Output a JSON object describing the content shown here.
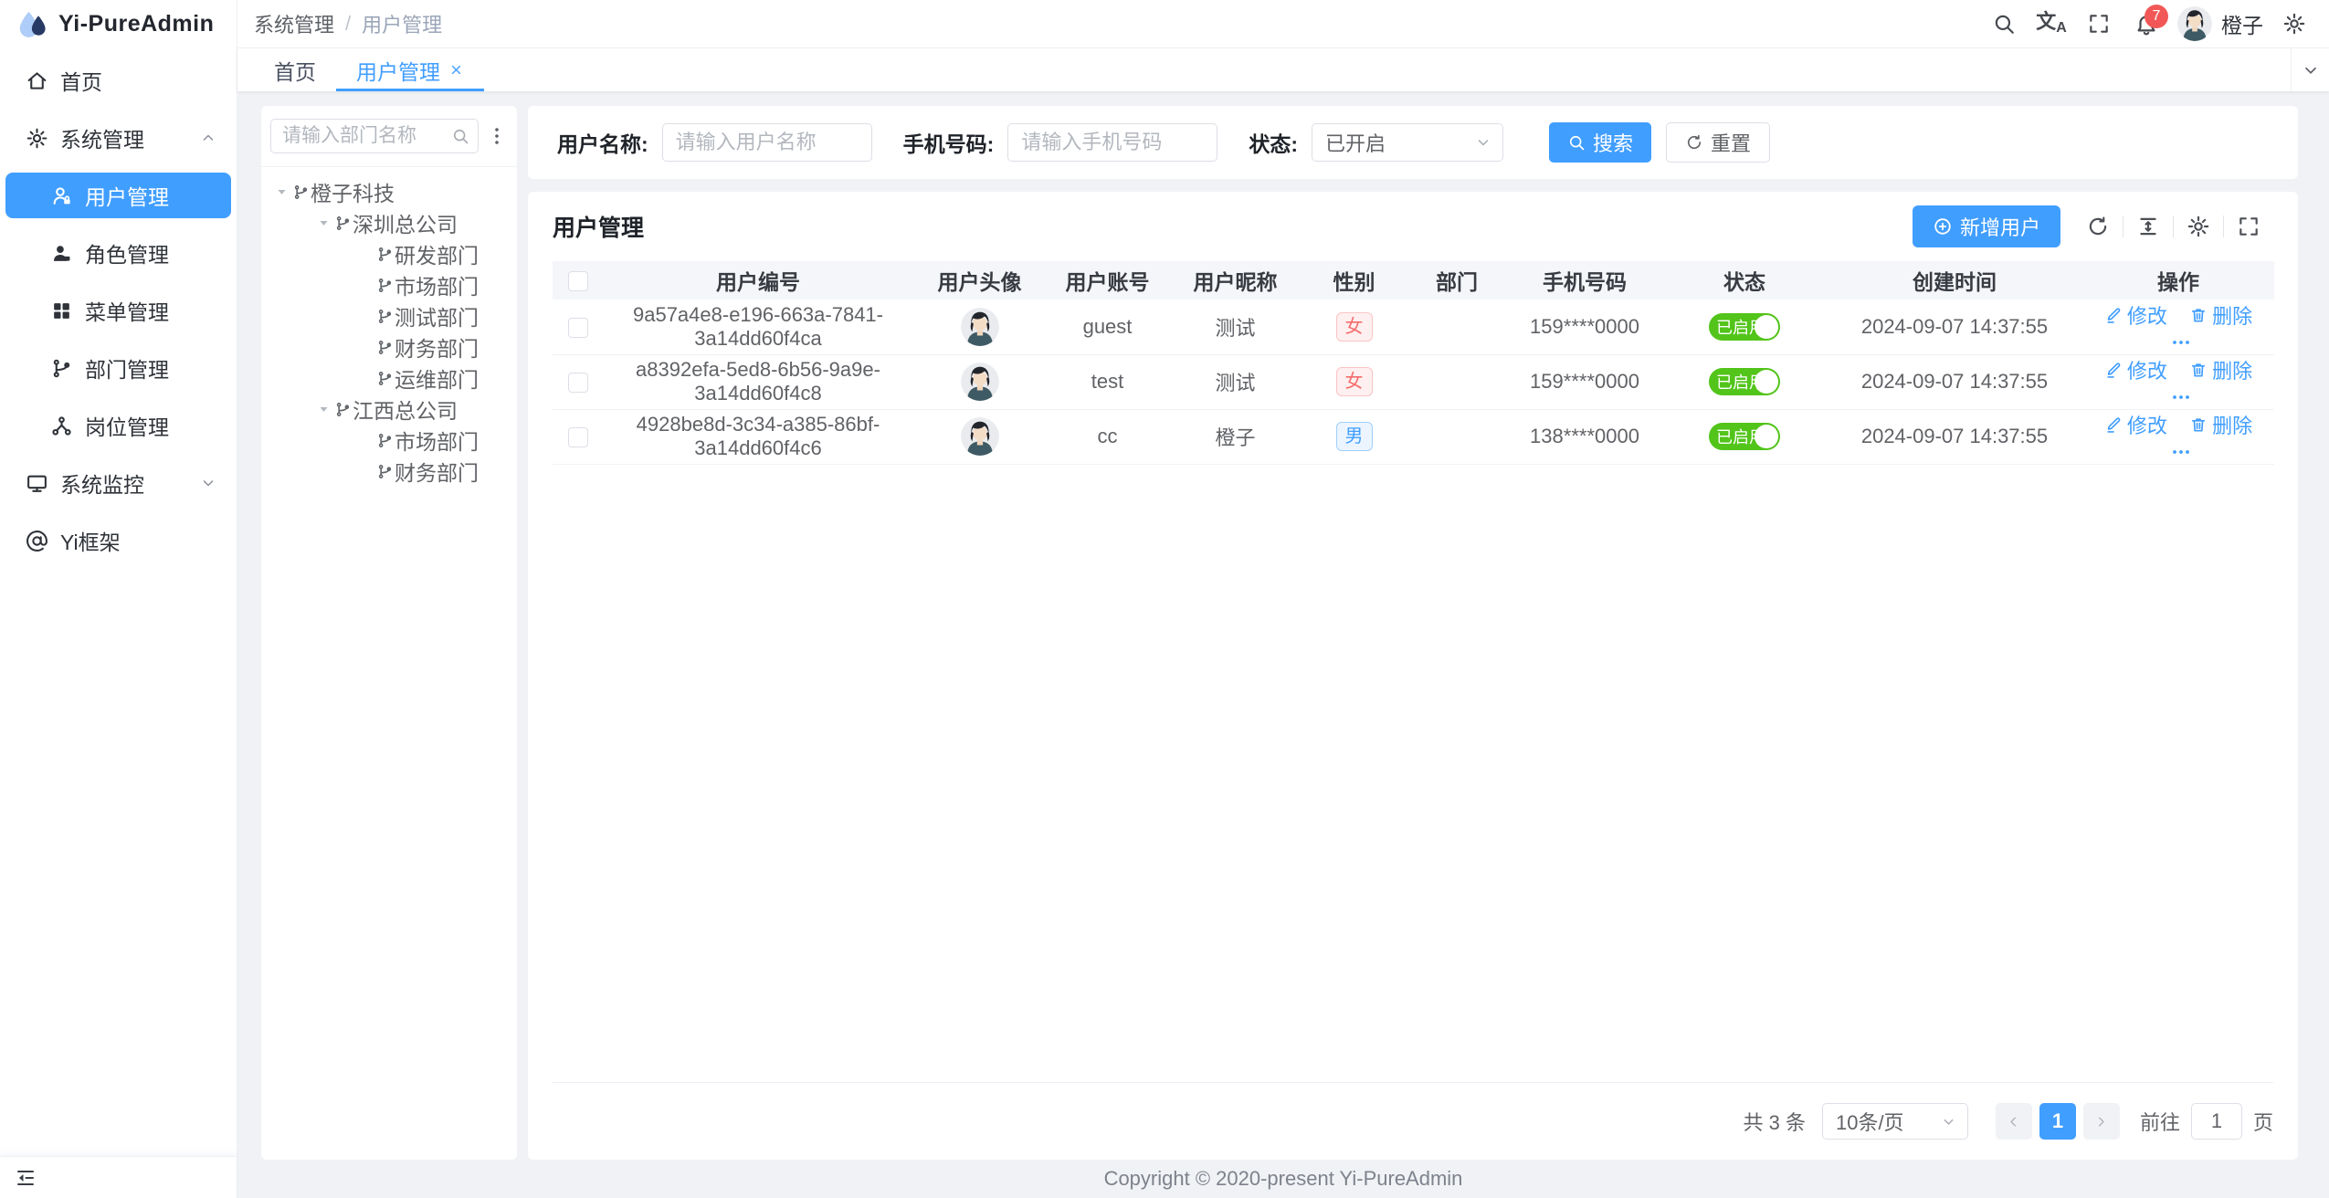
{
  "app": {
    "name": "Yi-PureAdmin"
  },
  "header": {
    "breadcrumb": [
      "系统管理",
      "用户管理"
    ],
    "icons": [
      "search-icon",
      "translate-icon",
      "fullscreen-icon",
      "bell-icon",
      "settings-gear-icon"
    ],
    "translate_glyph": "文A",
    "notification_count": "7",
    "username": "橙子"
  },
  "tabs": [
    {
      "label": "首页",
      "active": false,
      "closable": false
    },
    {
      "label": "用户管理",
      "active": true,
      "closable": true
    }
  ],
  "sidebar": {
    "items": [
      {
        "label": "首页",
        "icon": "home"
      },
      {
        "label": "系统管理",
        "icon": "gear",
        "expanded": true,
        "children": [
          {
            "label": "用户管理",
            "icon": "user-lock",
            "active": true
          },
          {
            "label": "角色管理",
            "icon": "role"
          },
          {
            "label": "菜单管理",
            "icon": "menu-grid"
          },
          {
            "label": "部门管理",
            "icon": "dept-branch"
          },
          {
            "label": "岗位管理",
            "icon": "post-nodes"
          }
        ]
      },
      {
        "label": "系统监控",
        "icon": "monitor",
        "collapsed": true
      },
      {
        "label": "Yi框架",
        "icon": "at-sign"
      }
    ]
  },
  "tree_panel": {
    "search_placeholder": "请输入部门名称",
    "nodes": [
      {
        "label": "橙子科技",
        "level": 0,
        "expandable": true
      },
      {
        "label": "深圳总公司",
        "level": 1,
        "expandable": true
      },
      {
        "label": "研发部门",
        "level": 2,
        "expandable": false
      },
      {
        "label": "市场部门",
        "level": 2,
        "expandable": false
      },
      {
        "label": "测试部门",
        "level": 2,
        "expandable": false
      },
      {
        "label": "财务部门",
        "level": 2,
        "expandable": false
      },
      {
        "label": "运维部门",
        "level": 2,
        "expandable": false
      },
      {
        "label": "江西总公司",
        "level": 1,
        "expandable": true
      },
      {
        "label": "市场部门",
        "level": 2,
        "expandable": false
      },
      {
        "label": "财务部门",
        "level": 2,
        "expandable": false
      }
    ]
  },
  "filter": {
    "username_label": "用户名称:",
    "username_placeholder": "请输入用户名称",
    "phone_label": "手机号码:",
    "phone_placeholder": "请输入手机号码",
    "status_label": "状态:",
    "status_value": "已开启",
    "search_button": "搜索",
    "reset_button": "重置"
  },
  "table": {
    "title": "用户管理",
    "add_button": "新增用户",
    "toolbar_icons": [
      "refresh-icon",
      "density-icon",
      "column-settings-icon",
      "table-fullscreen-icon"
    ],
    "columns": [
      "用户编号",
      "用户头像",
      "用户账号",
      "用户昵称",
      "性别",
      "部门",
      "手机号码",
      "状态",
      "创建时间",
      "操作"
    ],
    "actions": {
      "edit": "修改",
      "delete": "删除"
    },
    "rows": [
      {
        "id": "9a57a4e8-e196-663a-7841-3a14dd60f4ca",
        "account": "guest",
        "nickname": "测试",
        "gender": "女",
        "gender_type": "danger",
        "dept": "",
        "phone": "159****0000",
        "status": "已启用",
        "enabled": true,
        "created": "2024-09-07 14:37:55"
      },
      {
        "id": "a8392efa-5ed8-6b56-9a9e-3a14dd60f4c8",
        "account": "test",
        "nickname": "测试",
        "gender": "女",
        "gender_type": "danger",
        "dept": "",
        "phone": "159****0000",
        "status": "已启用",
        "enabled": true,
        "created": "2024-09-07 14:37:55"
      },
      {
        "id": "4928be8d-3c34-a385-86bf-3a14dd60f4c6",
        "account": "cc",
        "nickname": "橙子",
        "gender": "男",
        "gender_type": "primary",
        "dept": "",
        "phone": "138****0000",
        "status": "已启用",
        "enabled": true,
        "created": "2024-09-07 14:37:55"
      }
    ]
  },
  "pagination": {
    "total_text": "共 3 条",
    "page_size": "10条/页",
    "current_page": "1",
    "goto_label": "前往",
    "goto_value": "1",
    "page_suffix": "页"
  },
  "footer": {
    "copyright": "Copyright © 2020-present Yi-PureAdmin"
  },
  "colors": {
    "primary": "#409eff",
    "switch_on": "#52c41a",
    "danger": "#f56c6c"
  }
}
